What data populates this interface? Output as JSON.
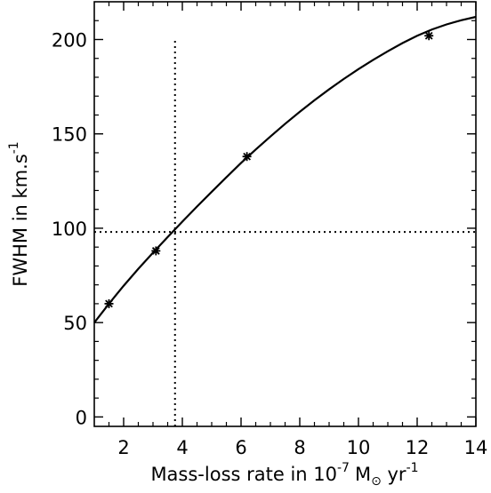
{
  "chart_data": {
    "type": "line",
    "xlabel": {
      "prefix": "Mass-loss rate in 10",
      "exponent": "-7",
      "unit_symbol": "M",
      "unit_subscript": "⊙",
      "suffix": " yr",
      "suffix_exponent": "-1"
    },
    "ylabel": {
      "prefix": "FWHM in km.s",
      "exponent": "-1"
    },
    "xlim": [
      1,
      14
    ],
    "ylim": [
      -5,
      220
    ],
    "x_ticks": [
      2,
      4,
      6,
      8,
      10,
      12,
      14
    ],
    "y_ticks": [
      0,
      50,
      100,
      150,
      200
    ],
    "grid": false,
    "legend": "none",
    "series": [
      {
        "type": "line",
        "style": "solid",
        "x": [
          1.0,
          1.5,
          2.0,
          2.5,
          3.0,
          3.5,
          4.0,
          4.5,
          5.0,
          5.5,
          6.0,
          6.5,
          7.0,
          7.5,
          8.0,
          8.5,
          9.0,
          9.5,
          10.0,
          10.5,
          11.0,
          11.5,
          12.0,
          12.5,
          13.0,
          13.5,
          14.0
        ],
        "y": [
          50.0,
          60.0,
          69.5,
          78.5,
          87.0,
          95.3,
          103.5,
          111.5,
          119.3,
          127.0,
          134.6,
          141.7,
          148.6,
          155.3,
          161.7,
          167.8,
          173.6,
          179.1,
          184.3,
          189.2,
          193.8,
          198.1,
          202.0,
          205.3,
          208.0,
          210.2,
          212.0
        ]
      },
      {
        "type": "scatter",
        "marker": "asterisk",
        "x": [
          1.5,
          3.1,
          6.2,
          12.4
        ],
        "y": [
          60,
          88,
          138,
          202
        ]
      }
    ],
    "reference_lines": [
      {
        "orientation": "vertical",
        "style": "dotted",
        "x": 3.75,
        "y_range": [
          -5,
          200
        ]
      },
      {
        "orientation": "horizontal",
        "style": "dotted",
        "y": 98,
        "x_range": [
          1,
          14
        ]
      }
    ]
  }
}
